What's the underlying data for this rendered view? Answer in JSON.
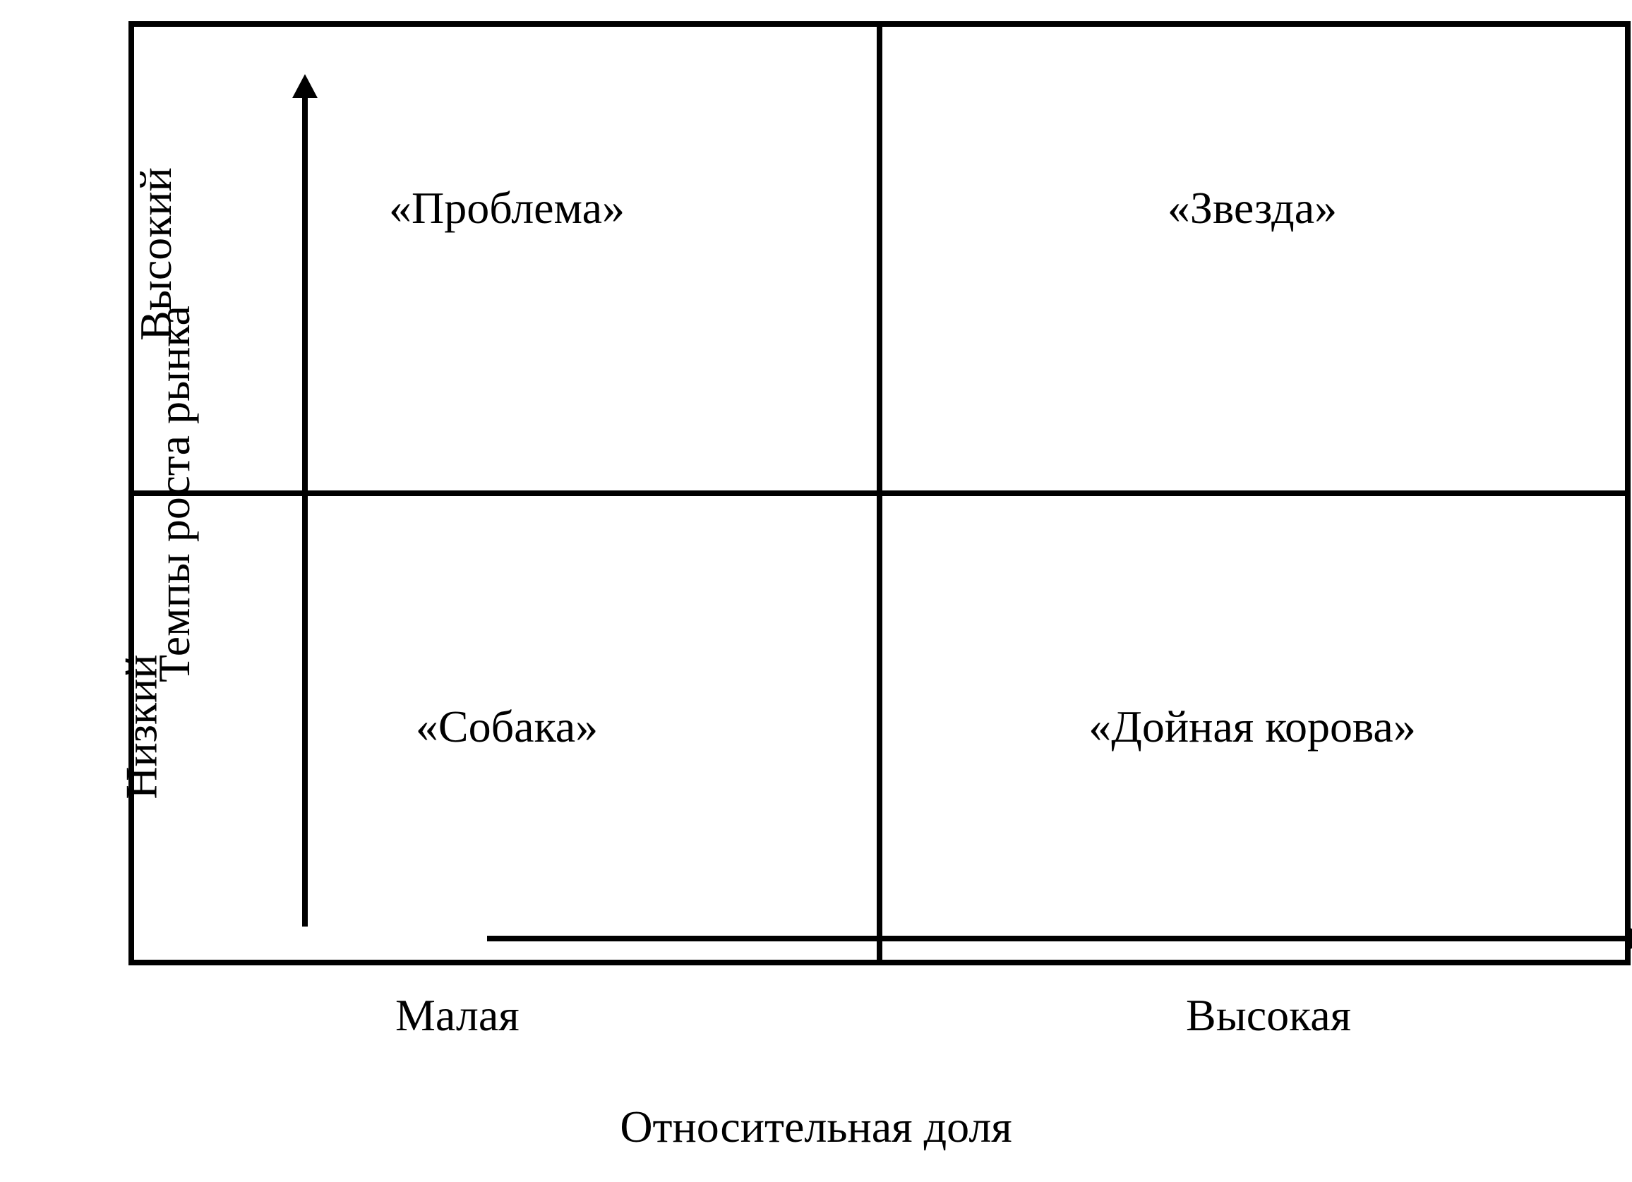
{
  "matrix": {
    "type": "quadrant-diagram",
    "border_color": "#000000",
    "border_width": 8,
    "background_color": "#ffffff",
    "font_family": "Times New Roman",
    "font_size": 64,
    "text_color": "#000000",
    "quadrants": {
      "top_left": "«Проблема»",
      "top_right": "«Звезда»",
      "bottom_left": "«Собака»",
      "bottom_right": "«Дойная корова»"
    },
    "y_axis": {
      "title": "Темпы роста рынка",
      "high_label": "Высокий",
      "low_label": "Низкий",
      "arrow_color": "#000000",
      "arrow_width": 8
    },
    "x_axis": {
      "title": "Относительная доля",
      "low_label": "Малая",
      "high_label": "Высокая",
      "arrow_color": "#000000",
      "arrow_width": 8
    }
  }
}
